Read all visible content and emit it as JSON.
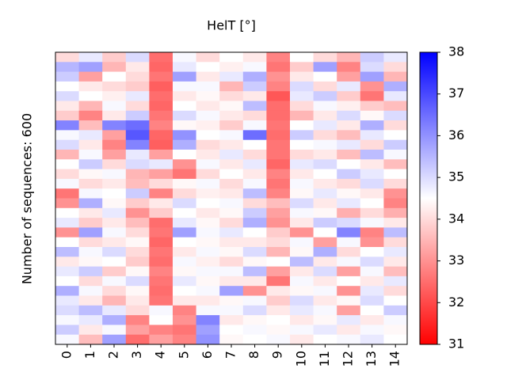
{
  "chart_data": {
    "type": "heatmap",
    "title": "HelT [°]",
    "ylabel": "Number of sequences: 600",
    "categories": [
      "0",
      "1",
      "2",
      "3",
      "4",
      "5",
      "6",
      "7",
      "8",
      "9",
      "10",
      "11",
      "12",
      "13",
      "14"
    ],
    "colormap": "bwr",
    "zlim": [
      31,
      38
    ],
    "zticks": [
      31,
      32,
      33,
      34,
      35,
      36,
      37,
      38
    ],
    "z": [
      [
        34.0,
        34.8,
        33.8,
        35.0,
        32.5,
        34.6,
        34.0,
        34.5,
        34.2,
        32.8,
        34.5,
        34.0,
        33.5,
        35.2,
        34.8
      ],
      [
        35.5,
        35.8,
        33.5,
        34.2,
        32.4,
        34.8,
        34.5,
        34.3,
        34.6,
        32.6,
        33.8,
        35.8,
        32.8,
        35.0,
        34.0
      ],
      [
        35.2,
        33.2,
        34.5,
        34.0,
        32.6,
        35.8,
        34.2,
        34.8,
        35.6,
        33.0,
        34.2,
        34.5,
        33.2,
        35.8,
        33.5
      ],
      [
        34.5,
        34.2,
        34.0,
        33.8,
        32.3,
        34.6,
        34.6,
        33.5,
        35.2,
        32.8,
        35.0,
        34.0,
        34.8,
        33.0,
        35.6
      ],
      [
        35.0,
        34.5,
        34.3,
        34.8,
        32.5,
        34.2,
        34.4,
        34.0,
        34.2,
        32.2,
        34.8,
        35.2,
        33.8,
        32.6,
        34.8
      ],
      [
        34.2,
        33.5,
        34.6,
        34.0,
        32.4,
        34.5,
        34.2,
        34.4,
        35.4,
        32.5,
        34.0,
        34.6,
        34.3,
        33.8,
        33.6
      ],
      [
        33.8,
        32.8,
        34.2,
        35.2,
        32.6,
        35.0,
        34.6,
        34.2,
        34.0,
        32.5,
        33.5,
        34.2,
        35.0,
        34.4,
        35.0
      ],
      [
        36.2,
        33.6,
        36.2,
        36.5,
        32.8,
        34.4,
        34.3,
        33.8,
        34.6,
        32.6,
        34.5,
        34.8,
        34.2,
        35.6,
        34.0
      ],
      [
        34.6,
        34.8,
        33.2,
        36.8,
        32.4,
        36.0,
        34.5,
        34.6,
        36.5,
        32.5,
        35.2,
        34.0,
        33.6,
        34.8,
        34.5
      ],
      [
        35.0,
        34.2,
        32.8,
        36.2,
        32.3,
        35.6,
        34.0,
        34.2,
        34.5,
        32.6,
        34.5,
        34.6,
        34.8,
        34.0,
        35.2
      ],
      [
        33.5,
        34.6,
        33.2,
        34.8,
        33.2,
        34.5,
        34.2,
        34.8,
        34.0,
        32.6,
        34.0,
        34.2,
        33.6,
        35.4,
        34.6
      ],
      [
        34.5,
        35.2,
        34.0,
        35.0,
        34.8,
        33.0,
        34.6,
        34.2,
        34.8,
        32.4,
        34.8,
        35.0,
        34.5,
        34.2,
        33.6
      ],
      [
        34.0,
        34.4,
        34.6,
        33.5,
        33.2,
        32.6,
        34.0,
        34.5,
        34.2,
        32.8,
        34.2,
        34.5,
        35.2,
        34.8,
        34.5
      ],
      [
        34.6,
        34.0,
        34.2,
        33.6,
        34.0,
        34.4,
        34.6,
        34.0,
        34.6,
        32.6,
        34.6,
        34.2,
        34.0,
        35.0,
        34.0
      ],
      [
        32.6,
        34.6,
        34.5,
        35.2,
        32.8,
        34.0,
        34.3,
        34.2,
        35.4,
        32.8,
        34.4,
        34.8,
        34.4,
        34.2,
        33.0
      ],
      [
        33.0,
        35.6,
        34.4,
        33.8,
        34.2,
        35.0,
        34.5,
        34.6,
        34.0,
        33.6,
        35.0,
        34.2,
        34.8,
        34.5,
        32.8
      ],
      [
        34.5,
        34.2,
        34.8,
        33.0,
        33.8,
        34.5,
        34.2,
        34.4,
        35.2,
        33.2,
        34.6,
        34.4,
        33.4,
        34.0,
        33.4
      ],
      [
        34.8,
        33.8,
        34.2,
        33.6,
        32.5,
        34.8,
        34.4,
        34.0,
        35.6,
        33.0,
        34.2,
        35.2,
        35.0,
        34.6,
        34.2
      ],
      [
        33.0,
        35.8,
        34.6,
        34.0,
        32.6,
        35.8,
        34.6,
        34.8,
        34.5,
        33.8,
        33.0,
        34.5,
        36.2,
        32.8,
        35.4
      ],
      [
        34.5,
        34.0,
        34.2,
        34.4,
        32.4,
        34.5,
        34.4,
        34.2,
        34.2,
        34.0,
        34.6,
        33.2,
        34.6,
        33.0,
        34.0
      ],
      [
        35.4,
        34.6,
        35.0,
        34.0,
        32.6,
        34.2,
        34.6,
        34.4,
        35.0,
        33.5,
        34.4,
        35.6,
        34.0,
        34.5,
        34.8
      ],
      [
        34.2,
        34.4,
        34.5,
        33.8,
        32.5,
        34.6,
        34.3,
        34.0,
        34.4,
        34.5,
        35.4,
        34.2,
        34.6,
        35.0,
        34.2
      ],
      [
        34.8,
        35.2,
        33.8,
        34.4,
        32.8,
        34.4,
        34.6,
        34.6,
        35.4,
        33.2,
        34.2,
        35.0,
        33.2,
        34.6,
        33.6
      ],
      [
        34.5,
        34.0,
        34.6,
        35.0,
        32.6,
        34.8,
        34.4,
        34.2,
        34.2,
        32.6,
        34.6,
        34.2,
        34.5,
        34.2,
        34.8
      ],
      [
        35.6,
        34.6,
        34.0,
        34.4,
        32.5,
        34.5,
        34.6,
        35.8,
        33.0,
        34.2,
        34.4,
        34.6,
        33.0,
        34.8,
        34.0
      ],
      [
        34.8,
        34.2,
        33.5,
        34.2,
        32.6,
        34.2,
        34.2,
        34.4,
        34.6,
        33.8,
        35.0,
        34.2,
        34.4,
        35.0,
        34.5
      ],
      [
        35.0,
        35.4,
        34.8,
        34.0,
        34.6,
        32.8,
        34.6,
        34.6,
        35.0,
        34.2,
        34.8,
        34.6,
        33.2,
        34.5,
        35.2
      ],
      [
        34.6,
        34.8,
        35.6,
        32.8,
        34.5,
        33.0,
        36.2,
        34.2,
        34.4,
        34.5,
        34.2,
        34.4,
        34.8,
        34.2,
        34.6
      ],
      [
        35.2,
        34.2,
        34.6,
        33.2,
        32.8,
        32.6,
        35.8,
        34.5,
        34.6,
        34.4,
        34.6,
        34.8,
        34.2,
        34.6,
        34.4
      ],
      [
        34.6,
        33.6,
        35.8,
        32.5,
        33.2,
        32.8,
        36.0,
        34.4,
        34.5,
        34.6,
        34.2,
        34.5,
        34.6,
        34.8,
        34.5
      ]
    ]
  }
}
